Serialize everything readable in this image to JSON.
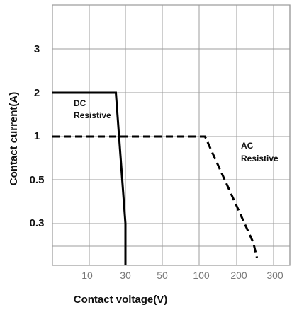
{
  "chart_data": {
    "type": "line",
    "title": "",
    "xlabel": "Contact voltage(V)",
    "ylabel": "Contact current(A)",
    "x_tick_labels": [
      "10",
      "30",
      "50",
      "100",
      "200",
      "300"
    ],
    "y_tick_labels": [
      "0.3",
      "0.5",
      "1",
      "2",
      "3"
    ],
    "grid": true,
    "series": [
      {
        "name": "DC Resistive",
        "label_lines": [
          "DC",
          "Resistive"
        ],
        "style": "solid",
        "color": "#000000",
        "points": [
          {
            "x": 0,
            "y": 2
          },
          {
            "x": 25,
            "y": 2
          },
          {
            "x": 30,
            "y": 0.3
          },
          {
            "x": 30,
            "y": 0.19
          }
        ]
      },
      {
        "name": "AC Resistive",
        "label_lines": [
          "AC",
          "Resistive"
        ],
        "style": "dashed",
        "color": "#000000",
        "points": [
          {
            "x": 0,
            "y": 1
          },
          {
            "x": 110,
            "y": 1
          },
          {
            "x": 240,
            "y": 0.25
          },
          {
            "x": 250,
            "y": 0.21
          }
        ]
      }
    ]
  }
}
